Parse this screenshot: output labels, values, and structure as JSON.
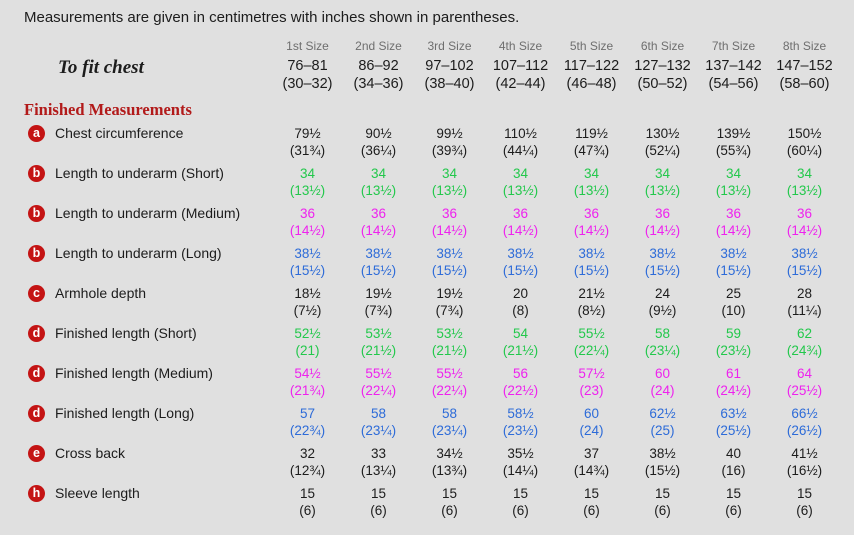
{
  "intro": "Measurements are given in centimetres with inches shown in parentheses.",
  "size_headers": [
    "1st Size",
    "2nd Size",
    "3rd Size",
    "4th Size",
    "5th Size",
    "6th Size",
    "7th Size",
    "8th Size"
  ],
  "to_fit": {
    "label": "To fit chest",
    "cm": [
      "76–81",
      "86–92",
      "97–102",
      "107–112",
      "117–122",
      "127–132",
      "137–142",
      "147–152"
    ],
    "in": [
      "(30–32)",
      "(34–36)",
      "(38–40)",
      "(42–44)",
      "(46–48)",
      "(50–52)",
      "(54–56)",
      "(58–60)"
    ]
  },
  "section_heading": "Finished Measurements",
  "rows": [
    {
      "badge": "a",
      "label": "Chest circumference",
      "color": "black",
      "cm": [
        "79½",
        "90½",
        "99½",
        "110½",
        "119½",
        "130½",
        "139½",
        "150½"
      ],
      "in": [
        "(31¾)",
        "(36¼)",
        "(39¾)",
        "(44¼)",
        "(47¾)",
        "(52¼)",
        "(55¾)",
        "(60¼)"
      ]
    },
    {
      "badge": "b",
      "label": "Length to underarm (Short)",
      "color": "green",
      "cm": [
        "34",
        "34",
        "34",
        "34",
        "34",
        "34",
        "34",
        "34"
      ],
      "in": [
        "(13½)",
        "(13½)",
        "(13½)",
        "(13½)",
        "(13½)",
        "(13½)",
        "(13½)",
        "(13½)"
      ]
    },
    {
      "badge": "b",
      "label": "Length to underarm (Medium)",
      "color": "magenta",
      "cm": [
        "36",
        "36",
        "36",
        "36",
        "36",
        "36",
        "36",
        "36"
      ],
      "in": [
        "(14½)",
        "(14½)",
        "(14½)",
        "(14½)",
        "(14½)",
        "(14½)",
        "(14½)",
        "(14½)"
      ]
    },
    {
      "badge": "b",
      "label": "Length to underarm (Long)",
      "color": "blue",
      "cm": [
        "38½",
        "38½",
        "38½",
        "38½",
        "38½",
        "38½",
        "38½",
        "38½"
      ],
      "in": [
        "(15½)",
        "(15½)",
        "(15½)",
        "(15½)",
        "(15½)",
        "(15½)",
        "(15½)",
        "(15½)"
      ]
    },
    {
      "badge": "c",
      "label": "Armhole depth",
      "color": "black",
      "cm": [
        "18½",
        "19½",
        "19½",
        "20",
        "21½",
        "24",
        "25",
        "28"
      ],
      "in": [
        "(7½)",
        "(7¾)",
        "(7¾)",
        "(8)",
        "(8½)",
        "(9½)",
        "(10)",
        "(11¼)"
      ]
    },
    {
      "badge": "d",
      "label": "Finished length (Short)",
      "color": "green",
      "cm": [
        "52½",
        "53½",
        "53½",
        "54",
        "55½",
        "58",
        "59",
        "62"
      ],
      "in": [
        "(21)",
        "(21½)",
        "(21½)",
        "(21½)",
        "(22¼)",
        "(23¼)",
        "(23½)",
        "(24¾)"
      ]
    },
    {
      "badge": "d",
      "label": "Finished length (Medium)",
      "color": "magenta",
      "cm": [
        "54½",
        "55½",
        "55½",
        "56",
        "57½",
        "60",
        "61",
        "64"
      ],
      "in": [
        "(21¾)",
        "(22¼)",
        "(22¼)",
        "(22½)",
        "(23)",
        "(24)",
        "(24½)",
        "(25½)"
      ]
    },
    {
      "badge": "d",
      "label": "Finished length (Long)",
      "color": "blue",
      "cm": [
        "57",
        "58",
        "58",
        "58½",
        "60",
        "62½",
        "63½",
        "66½"
      ],
      "in": [
        "(22¾)",
        "(23¼)",
        "(23¼)",
        "(23½)",
        "(24)",
        "(25)",
        "(25½)",
        "(26½)"
      ]
    },
    {
      "badge": "e",
      "label": "Cross back",
      "color": "black",
      "cm": [
        "32",
        "33",
        "34½",
        "35½",
        "37",
        "38½",
        "40",
        "41½"
      ],
      "in": [
        "(12¾)",
        "(13¼)",
        "(13¾)",
        "(14¼)",
        "(14¾)",
        "(15½)",
        "(16)",
        "(16½)"
      ]
    },
    {
      "badge": "h",
      "label": "Sleeve length",
      "color": "black",
      "cm": [
        "15",
        "15",
        "15",
        "15",
        "15",
        "15",
        "15",
        "15"
      ],
      "in": [
        "(6)",
        "(6)",
        "(6)",
        "(6)",
        "(6)",
        "(6)",
        "(6)",
        "(6)"
      ]
    }
  ],
  "colors": {
    "black": "#1c1c1c",
    "green": "#22c84b",
    "magenta": "#ee22ee",
    "blue": "#2d6bd8",
    "badge_red": "#c41414",
    "heading_red": "#b21a1a",
    "size_header_gray": "#6e6e6e",
    "background": "#e0e0e0"
  }
}
